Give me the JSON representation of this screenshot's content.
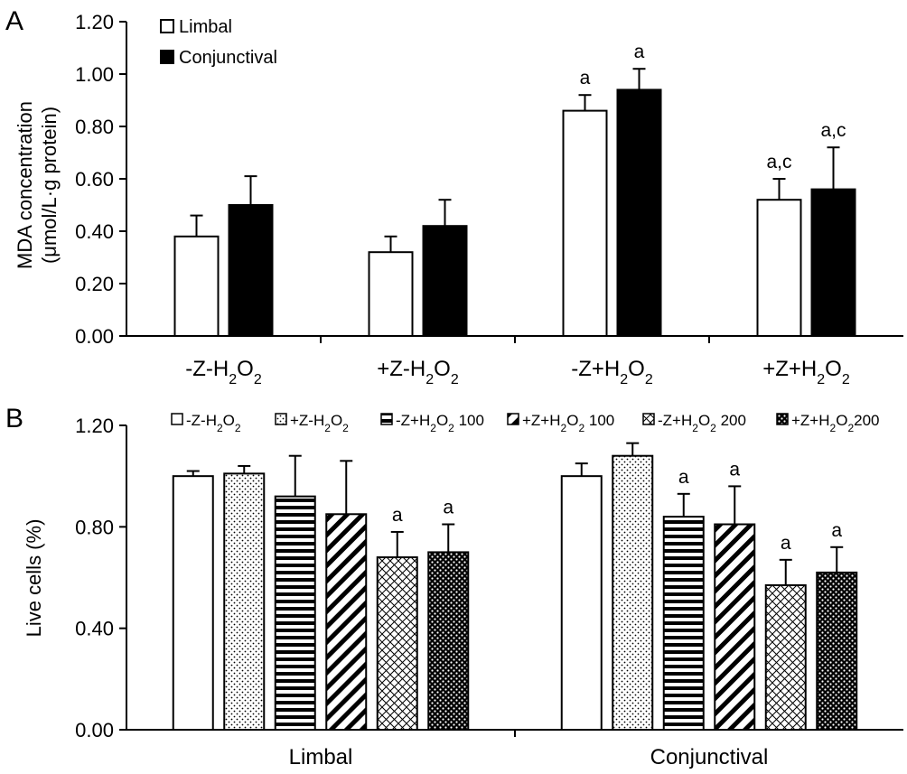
{
  "chart_data": [
    {
      "panel": "A",
      "type": "bar",
      "ylabel_line1": "MDA concentration",
      "ylabel_line2": "(μmol/L·g protein)",
      "ylim": [
        0,
        1.2
      ],
      "yticks": [
        "0.00",
        "0.20",
        "0.40",
        "0.60",
        "0.80",
        "1.00",
        "1.20"
      ],
      "categories": [
        {
          "base": "-Z-H",
          "mid": "O",
          "sub": "2",
          "tail": ""
        },
        {
          "base": "+Z-H",
          "mid": "O",
          "sub": "2",
          "tail": ""
        },
        {
          "base": "-Z+H",
          "mid": "O",
          "sub": "2",
          "tail": ""
        },
        {
          "base": "+Z+H",
          "mid": "O",
          "sub": "2",
          "tail": ""
        }
      ],
      "legend_position": "top-left",
      "series": [
        {
          "name": "Limbal",
          "fill": "#ffffff",
          "values": [
            0.38,
            0.32,
            0.86,
            0.52
          ],
          "errors": [
            0.08,
            0.06,
            0.06,
            0.08
          ],
          "annotations": [
            "",
            "",
            "a",
            "a,c"
          ]
        },
        {
          "name": "Conjunctival",
          "fill": "#000000",
          "values": [
            0.5,
            0.42,
            0.94,
            0.56
          ],
          "errors": [
            0.11,
            0.1,
            0.08,
            0.16
          ],
          "annotations": [
            "",
            "",
            "a",
            "a,c"
          ]
        }
      ]
    },
    {
      "panel": "B",
      "type": "bar",
      "ylabel": "Live cells (%)",
      "ylim": [
        0,
        1.2
      ],
      "yticks": [
        "0.00",
        "0.40",
        "0.80",
        "1.20"
      ],
      "categories": [
        "Limbal",
        "Conjunctival"
      ],
      "legend_position": "top",
      "series": [
        {
          "label": {
            "pre": "-Z-H",
            "sub": "2",
            "post": ""
          },
          "pattern": "none",
          "values": [
            1.0,
            1.0
          ],
          "errors": [
            0.02,
            0.05
          ],
          "annotations": [
            "",
            ""
          ]
        },
        {
          "label": {
            "pre": "+Z-H",
            "sub": "2",
            "post": ""
          },
          "pattern": "dots",
          "values": [
            1.01,
            1.08
          ],
          "errors": [
            0.03,
            0.05
          ],
          "annotations": [
            "",
            ""
          ]
        },
        {
          "label": {
            "pre": "-Z+H",
            "sub": "2",
            "post": " 100"
          },
          "pattern": "hlines",
          "values": [
            0.92,
            0.84
          ],
          "errors": [
            0.16,
            0.09
          ],
          "annotations": [
            "",
            "a"
          ]
        },
        {
          "label": {
            "pre": "+Z+H",
            "sub": "2",
            "post": " 100"
          },
          "pattern": "diag",
          "values": [
            0.85,
            0.81
          ],
          "errors": [
            0.21,
            0.15
          ],
          "annotations": [
            "",
            "a"
          ]
        },
        {
          "label": {
            "pre": "-Z+H",
            "sub": "2",
            "post": " 200"
          },
          "pattern": "cross",
          "values": [
            0.68,
            0.57
          ],
          "errors": [
            0.1,
            0.1
          ],
          "annotations": [
            "a",
            "a"
          ]
        },
        {
          "label": {
            "pre": "+Z+H",
            "sub": "2",
            "post": "200"
          },
          "pattern": "checker",
          "values": [
            0.7,
            0.62
          ],
          "errors": [
            0.11,
            0.1
          ],
          "annotations": [
            "a",
            "a"
          ]
        }
      ]
    }
  ]
}
